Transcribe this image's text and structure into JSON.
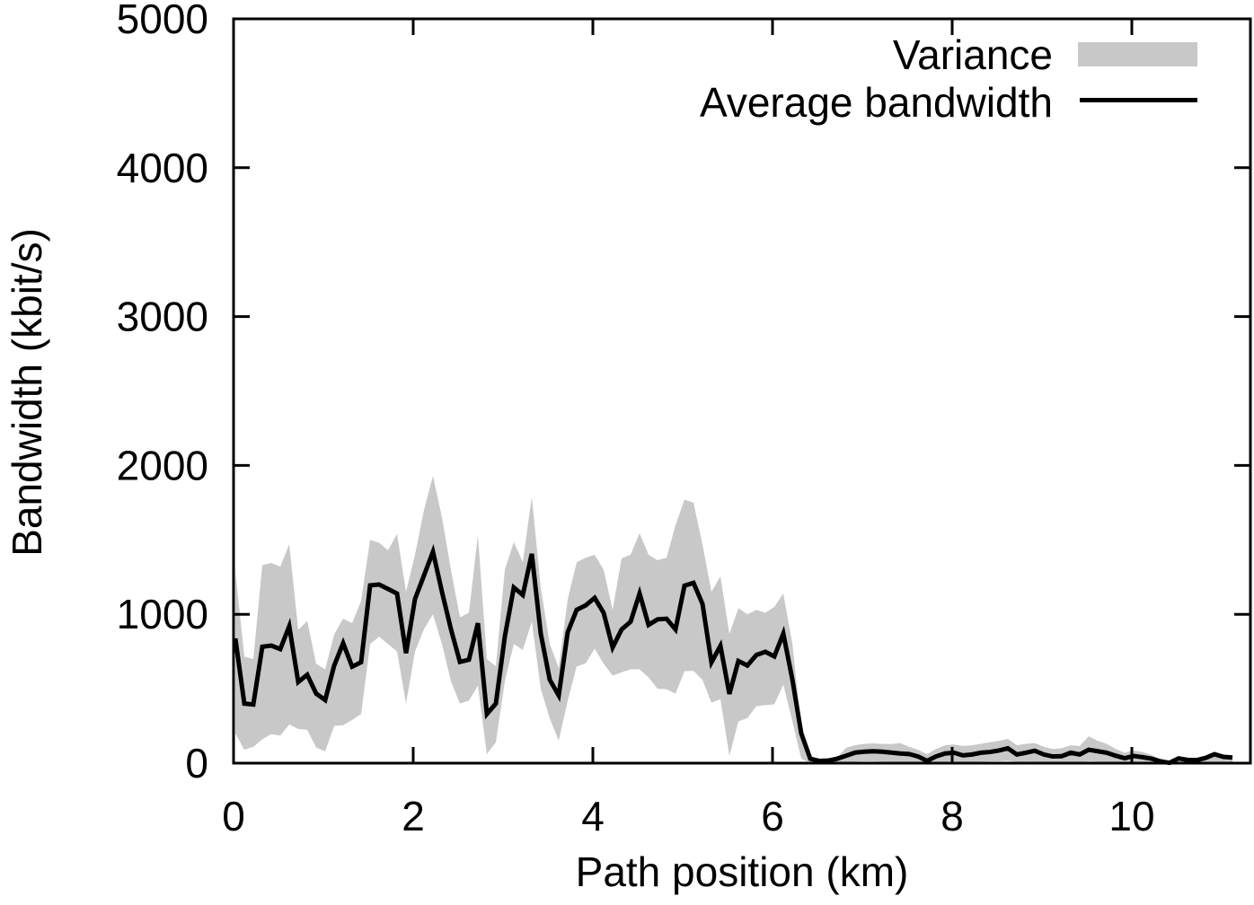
{
  "figure": {
    "y_axis_label": "Bandwidth (kbit/s)",
    "x_axis_label": "Path position (km)",
    "legend": {
      "variance_label": "Variance",
      "average_label": "Average bandwidth"
    },
    "colors": {
      "band": "#c8c8c8",
      "line": "#000000",
      "background": "#ffffff",
      "text": "#000000",
      "frame": "#000000"
    }
  },
  "chart_data": {
    "type": "line",
    "title": "",
    "xlabel": "Path position (km)",
    "ylabel": "Bandwidth (kbit/s)",
    "xlim": [
      0,
      11.32
    ],
    "ylim": [
      0,
      5000
    ],
    "x_ticks": [
      0,
      2,
      4,
      6,
      8,
      10
    ],
    "y_ticks": [
      0,
      1000,
      2000,
      3000,
      4000,
      5000
    ],
    "grid": false,
    "legend_position": "top-right-inside",
    "x": [
      0.02,
      0.12,
      0.22,
      0.32,
      0.42,
      0.52,
      0.62,
      0.72,
      0.82,
      0.92,
      1.02,
      1.12,
      1.22,
      1.32,
      1.42,
      1.52,
      1.62,
      1.72,
      1.82,
      1.92,
      2.02,
      2.12,
      2.22,
      2.32,
      2.42,
      2.52,
      2.62,
      2.72,
      2.82,
      2.92,
      3.02,
      3.12,
      3.22,
      3.32,
      3.42,
      3.52,
      3.62,
      3.72,
      3.82,
      3.92,
      4.02,
      4.12,
      4.22,
      4.32,
      4.42,
      4.52,
      4.62,
      4.72,
      4.82,
      4.92,
      5.02,
      5.12,
      5.22,
      5.32,
      5.42,
      5.52,
      5.62,
      5.72,
      5.82,
      5.92,
      6.02,
      6.12,
      6.22,
      6.32,
      6.42,
      6.52,
      6.62,
      6.72,
      6.82,
      6.92,
      7.02,
      7.12,
      7.22,
      7.32,
      7.42,
      7.52,
      7.62,
      7.72,
      7.82,
      7.92,
      8.02,
      8.12,
      8.22,
      8.32,
      8.42,
      8.52,
      8.62,
      8.72,
      8.82,
      8.92,
      9.02,
      9.12,
      9.22,
      9.32,
      9.42,
      9.52,
      9.62,
      9.72,
      9.82,
      9.92,
      10.02,
      10.12,
      10.22,
      10.32,
      10.42,
      10.52,
      10.62,
      10.72,
      10.82,
      10.92,
      11.02,
      11.12
    ],
    "series": [
      {
        "name": "Average bandwidth",
        "type": "line",
        "color": "#000000",
        "values": [
          838,
          400,
          394,
          782,
          790,
          766,
          920,
          545,
          594,
          467,
          424,
          655,
          806,
          648,
          678,
          1194,
          1200,
          1170,
          1139,
          739,
          1103,
          1261,
          1420,
          1151,
          900,
          680,
          695,
          940,
          330,
          400,
          850,
          1180,
          1130,
          1406,
          870,
          560,
          455,
          880,
          1030,
          1060,
          1110,
          1010,
          777,
          898,
          950,
          1140,
          929,
          966,
          970,
          898,
          1192,
          1211,
          1071,
          677,
          788,
          465,
          686,
          656,
          727,
          748,
          717,
          870,
          565,
          200,
          30,
          15,
          17,
          30,
          50,
          71,
          77,
          80,
          77,
          71,
          65,
          61,
          45,
          15,
          45,
          65,
          70,
          52,
          58,
          70,
          75,
          85,
          100,
          58,
          70,
          83,
          58,
          45,
          47,
          70,
          58,
          90,
          80,
          70,
          50,
          33,
          48,
          40,
          30,
          12,
          2,
          32,
          22,
          20,
          35,
          60,
          42,
          38
        ]
      },
      {
        "name": "Variance",
        "type": "band",
        "color": "#c8c8c8",
        "upper": [
          1290,
          715,
          700,
          1330,
          1345,
          1320,
          1470,
          895,
          955,
          667,
          630,
          865,
          970,
          940,
          1090,
          1500,
          1480,
          1430,
          1540,
          1150,
          1400,
          1700,
          1930,
          1650,
          1300,
          980,
          1010,
          1530,
          700,
          650,
          1300,
          1485,
          1350,
          1788,
          1180,
          800,
          640,
          1100,
          1350,
          1380,
          1400,
          1300,
          1030,
          1376,
          1400,
          1545,
          1400,
          1363,
          1380,
          1600,
          1770,
          1750,
          1470,
          1151,
          1254,
          867,
          1042,
          1000,
          1030,
          1010,
          1050,
          1139,
          806,
          250,
          35,
          18,
          20,
          40,
          103,
          121,
          130,
          133,
          130,
          128,
          135,
          110,
          90,
          60,
          95,
          120,
          125,
          115,
          120,
          130,
          140,
          150,
          163,
          120,
          130,
          135,
          110,
          95,
          100,
          120,
          115,
          180,
          150,
          130,
          95,
          70,
          85,
          75,
          55,
          25,
          5,
          40,
          28,
          25,
          40,
          65,
          45,
          40
        ],
        "lower": [
          200,
          90,
          110,
          160,
          195,
          185,
          260,
          230,
          225,
          105,
          80,
          250,
          255,
          290,
          330,
          800,
          850,
          800,
          750,
          400,
          750,
          900,
          1000,
          800,
          550,
          400,
          420,
          520,
          60,
          140,
          550,
          800,
          760,
          950,
          500,
          300,
          150,
          420,
          650,
          670,
          770,
          667,
          588,
          610,
          630,
          630,
          576,
          500,
          497,
          467,
          618,
          620,
          560,
          406,
          430,
          50,
          280,
          303,
          382,
          390,
          395,
          527,
          285,
          30,
          0,
          0,
          0,
          0,
          5,
          10,
          12,
          12,
          10,
          10,
          8,
          5,
          3,
          0,
          5,
          10,
          10,
          8,
          8,
          10,
          12,
          12,
          15,
          8,
          10,
          10,
          5,
          3,
          3,
          8,
          5,
          12,
          10,
          8,
          3,
          0,
          3,
          2,
          0,
          0,
          0,
          0,
          0,
          0,
          0,
          0,
          0,
          0
        ]
      }
    ]
  }
}
